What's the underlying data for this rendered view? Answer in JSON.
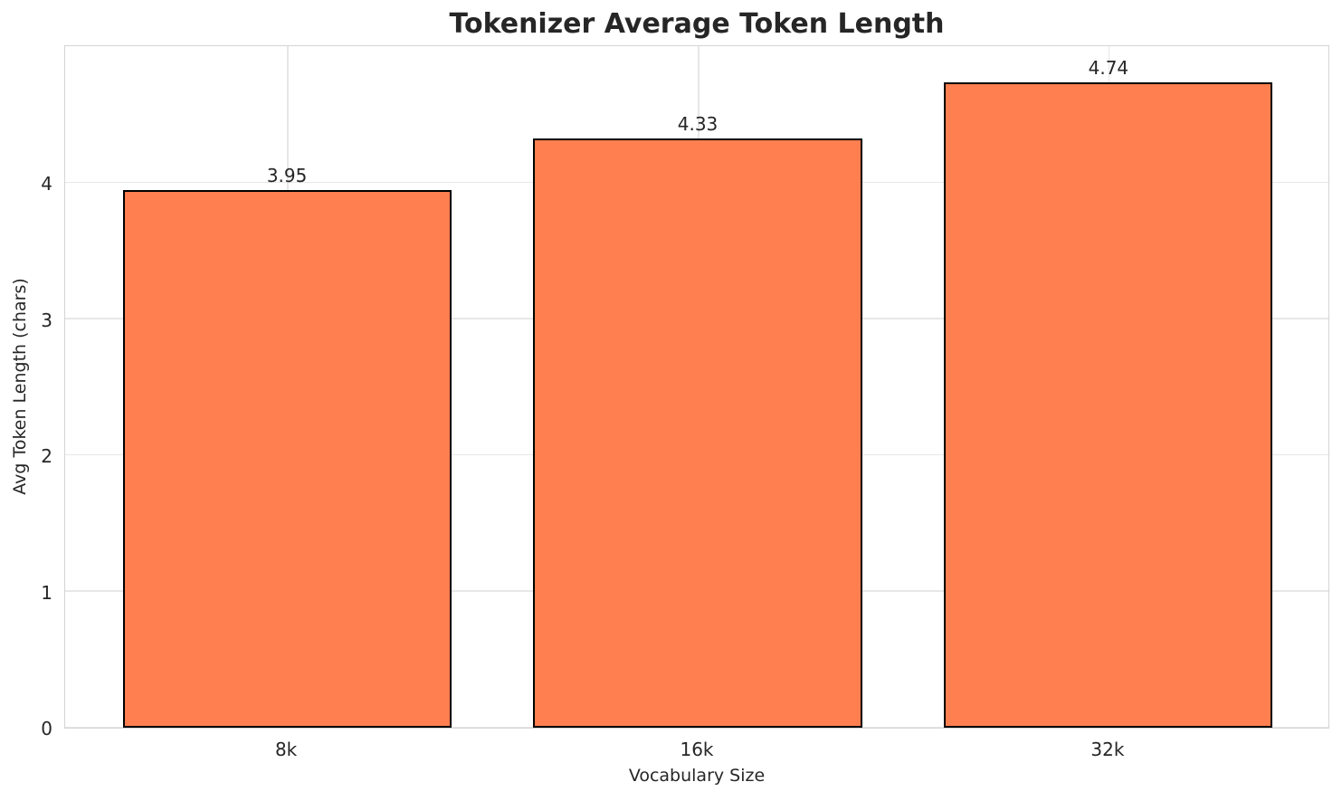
{
  "chart_data": {
    "type": "bar",
    "title": "Tokenizer Average Token Length",
    "xlabel": "Vocabulary Size",
    "ylabel": "Avg Token Length (chars)",
    "categories": [
      "8k",
      "16k",
      "32k"
    ],
    "values": [
      3.95,
      4.33,
      4.74
    ],
    "value_labels": [
      "3.95",
      "4.33",
      "4.74"
    ],
    "yticks": [
      0,
      1,
      2,
      3,
      4
    ],
    "ylim": [
      0,
      5.02
    ],
    "xlim": [
      -0.54,
      2.54
    ],
    "bar_width": 0.8,
    "grid": "both",
    "legend": "none",
    "colors": {
      "bar_fill": "#FF7F50",
      "bar_edge": "#000000",
      "grid": "#e7e7e7",
      "spine": "#d4d4d4",
      "text": "#262626",
      "background": "#ffffff"
    }
  }
}
